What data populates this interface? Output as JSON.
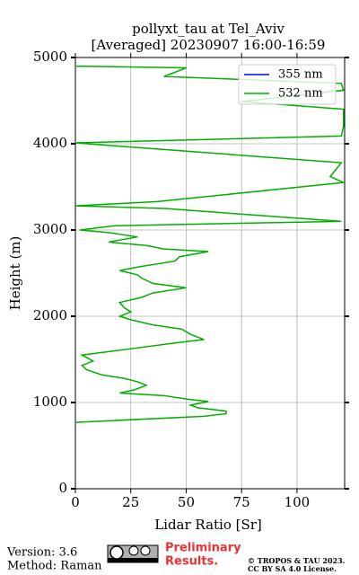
{
  "chart_data": {
    "type": "line",
    "title": "pollyxt_tau at Tel_Aviv",
    "subtitle": "[Averaged] 20230907 16:00-16:59",
    "xlabel": "Lidar Ratio [Sr]",
    "ylabel": "Height (m)",
    "xlim": [
      0,
      121.5
    ],
    "xticks": [
      0,
      25,
      50,
      75,
      100
    ],
    "ylim": [
      0,
      5000
    ],
    "yticks": [
      0,
      1000,
      2000,
      3000,
      4000,
      5000
    ],
    "grid": true,
    "legend": "upper right",
    "y": [
      770,
      840,
      870,
      900,
      940,
      970,
      1010,
      1040,
      1080,
      1110,
      1150,
      1200,
      1240,
      1280,
      1320,
      1380,
      1430,
      1480,
      1550,
      1590,
      1640,
      1690,
      1730,
      1790,
      1850,
      1900,
      1960,
      2000,
      2050,
      2100,
      2160,
      2220,
      2270,
      2330,
      2380,
      2440,
      2480,
      2530,
      2570,
      2640,
      2690,
      2750,
      2780,
      2820,
      2860,
      2920,
      2970,
      3000,
      3050,
      3100,
      3250,
      3280,
      3330,
      3550,
      3620,
      3780,
      4010,
      4090,
      4200,
      4400,
      4490,
      4620,
      4700,
      4780,
      4880,
      4900
    ],
    "series": [
      {
        "name": "355 nm",
        "color": "#0000ff",
        "values": [
          null,
          null,
          null,
          null,
          null,
          null,
          null,
          null,
          null,
          null,
          null,
          null,
          null,
          null,
          null,
          null,
          null,
          null,
          null,
          null,
          null,
          null,
          null,
          null,
          null,
          null,
          null,
          null,
          null,
          null,
          null,
          null,
          null,
          null,
          null,
          null,
          null,
          null,
          null,
          null,
          null,
          null,
          null,
          null,
          null,
          null,
          null,
          null,
          null,
          null,
          null,
          null,
          null,
          null,
          null,
          null,
          null,
          null,
          null,
          null,
          null,
          null,
          null,
          null,
          null,
          null
        ]
      },
      {
        "name": "532 nm",
        "color": "#00b000",
        "values": [
          0,
          58,
          68,
          68,
          55,
          52,
          60,
          50,
          40,
          20,
          27,
          32,
          28,
          22,
          12,
          5,
          3,
          8,
          3,
          15,
          30,
          45,
          58,
          52,
          48,
          35,
          25,
          20,
          25,
          22,
          20,
          30,
          35,
          50,
          35,
          30,
          28,
          20,
          28,
          45,
          47,
          60,
          40,
          32,
          15,
          28,
          15,
          2,
          18,
          120,
          40,
          0,
          37,
          121,
          115,
          120,
          0,
          120,
          121,
          121,
          75,
          121,
          120,
          40,
          50,
          0
        ]
      }
    ]
  },
  "footer": {
    "version": "Version: 3.6",
    "method": "Method: Raman",
    "preliminary": [
      "Preliminary",
      "Results."
    ],
    "copyright": [
      "© TROPOS & TAU 2023.",
      "CC BY SA 4.0 License."
    ]
  }
}
